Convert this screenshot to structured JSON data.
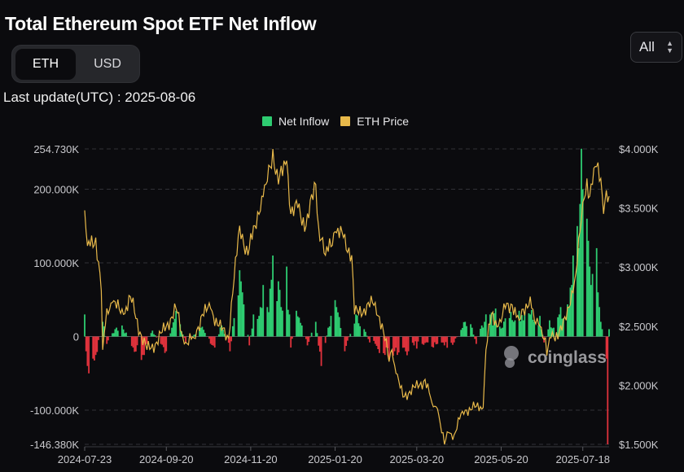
{
  "header": {
    "title": "Total Ethereum Spot ETF Net Inflow"
  },
  "unit_toggle": {
    "options": [
      "ETH",
      "USD"
    ],
    "selected": "ETH"
  },
  "range_select": {
    "value": "All"
  },
  "last_update": "Last update(UTC) : 2025-08-06",
  "watermark": "coinglass",
  "colors": {
    "inflow": "#2ecc71",
    "outflow": "#e0323c",
    "price": "#e8b94a",
    "background": "#0b0b0e"
  },
  "chart_data": {
    "type": "bar",
    "title": "Total Ethereum Spot ETF Net Inflow",
    "legend": {
      "placement": "top-center",
      "entries": [
        {
          "name": "Net Inflow",
          "color": "#2ecc71"
        },
        {
          "name": "ETH Price",
          "color": "#e8b94a"
        }
      ]
    },
    "grid": true,
    "x_start": "2024-07-23",
    "x_end": "2025-08-06",
    "x_tick_labels": [
      "2024-07-23",
      "2024-09-20",
      "2024-11-20",
      "2025-01-20",
      "2025-03-20",
      "2025-05-20",
      "2025-07-18"
    ],
    "left_axis": {
      "ticks": [
        -146380,
        -100000,
        0,
        100000,
        200000,
        254730
      ],
      "tick_labels": [
        "-146.380K",
        "-100.000K",
        "0",
        "100.000K",
        "200.000K",
        "254.730K"
      ],
      "ylim": [
        -146380,
        254730
      ]
    },
    "right_axis": {
      "ticks": [
        1500,
        2000,
        2500,
        3000,
        3500,
        4000
      ],
      "tick_labels": [
        "$1.500K",
        "$2.000K",
        "$2.500K",
        "$3.000K",
        "$3.500K",
        "$4.000K"
      ],
      "ylim": [
        1500,
        4000
      ]
    },
    "net_inflow_keyframes": [
      [
        "2024-07-23",
        30000
      ],
      [
        "2024-07-24",
        -20000
      ],
      [
        "2024-07-25",
        -40000
      ],
      [
        "2024-07-26",
        -50000
      ],
      [
        "2024-07-29",
        -30000
      ],
      [
        "2024-07-31",
        -25000
      ],
      [
        "2024-08-05",
        20000
      ],
      [
        "2024-08-08",
        -10000
      ],
      [
        "2024-08-14",
        10000
      ],
      [
        "2024-08-19",
        15000
      ],
      [
        "2024-08-27",
        -15000
      ],
      [
        "2024-09-03",
        -25000
      ],
      [
        "2024-09-10",
        8000
      ],
      [
        "2024-09-16",
        -10000
      ],
      [
        "2024-09-20",
        -20000
      ],
      [
        "2024-09-27",
        35000
      ],
      [
        "2024-10-04",
        -8000
      ],
      [
        "2024-10-15",
        12000
      ],
      [
        "2024-10-25",
        -15000
      ],
      [
        "2024-10-30",
        15000
      ],
      [
        "2024-11-05",
        -20000
      ],
      [
        "2024-11-08",
        25000
      ],
      [
        "2024-11-12",
        90000
      ],
      [
        "2024-11-14",
        60000
      ],
      [
        "2024-11-19",
        -12000
      ],
      [
        "2024-11-22",
        30000
      ],
      [
        "2024-11-27",
        40000
      ],
      [
        "2024-11-29",
        70000
      ],
      [
        "2024-12-02",
        40000
      ],
      [
        "2024-12-04",
        65000
      ],
      [
        "2024-12-06",
        110000
      ],
      [
        "2024-12-10",
        75000
      ],
      [
        "2024-12-12",
        40000
      ],
      [
        "2024-12-16",
        95000
      ],
      [
        "2024-12-18",
        30000
      ],
      [
        "2024-12-19",
        -15000
      ],
      [
        "2024-12-23",
        35000
      ],
      [
        "2024-12-27",
        15000
      ],
      [
        "2024-12-31",
        -12000
      ],
      [
        "2025-01-06",
        20000
      ],
      [
        "2025-01-10",
        -40000
      ],
      [
        "2025-01-15",
        12000
      ],
      [
        "2025-01-21",
        40000
      ],
      [
        "2025-01-27",
        -20000
      ],
      [
        "2025-02-04",
        30000
      ],
      [
        "2025-02-06",
        18000
      ],
      [
        "2025-02-10",
        10000
      ],
      [
        "2025-02-14",
        -8000
      ],
      [
        "2025-02-18",
        -10000
      ],
      [
        "2025-02-25",
        -25000
      ],
      [
        "2025-02-28",
        -30000
      ],
      [
        "2025-03-04",
        -20000
      ],
      [
        "2025-03-11",
        -15000
      ],
      [
        "2025-03-14",
        -20000
      ],
      [
        "2025-03-18",
        -12000
      ],
      [
        "2025-03-24",
        -10000
      ],
      [
        "2025-03-28",
        -8000
      ],
      [
        "2025-04-01",
        -15000
      ],
      [
        "2025-04-04",
        -10000
      ],
      [
        "2025-04-09",
        -12000
      ],
      [
        "2025-04-16",
        -8000
      ],
      [
        "2025-04-24",
        20000
      ],
      [
        "2025-04-29",
        12000
      ],
      [
        "2025-05-02",
        -10000
      ],
      [
        "2025-05-06",
        15000
      ],
      [
        "2025-05-08",
        20000
      ],
      [
        "2025-05-12",
        30000
      ],
      [
        "2025-05-14",
        15000
      ],
      [
        "2025-05-16",
        38000
      ],
      [
        "2025-05-21",
        12000
      ],
      [
        "2025-05-26",
        25000
      ],
      [
        "2025-05-29",
        20000
      ],
      [
        "2025-06-02",
        35000
      ],
      [
        "2025-06-05",
        22000
      ],
      [
        "2025-06-10",
        30000
      ],
      [
        "2025-06-13",
        20000
      ],
      [
        "2025-06-17",
        28000
      ],
      [
        "2025-06-20",
        -8000
      ],
      [
        "2025-06-24",
        22000
      ],
      [
        "2025-06-27",
        12000
      ],
      [
        "2025-07-01",
        30000
      ],
      [
        "2025-07-04",
        25000
      ],
      [
        "2025-07-08",
        40000
      ],
      [
        "2025-07-10",
        70000
      ],
      [
        "2025-07-11",
        110000
      ],
      [
        "2025-07-14",
        150000
      ],
      [
        "2025-07-15",
        120000
      ],
      [
        "2025-07-16",
        180000
      ],
      [
        "2025-07-17",
        255000
      ],
      [
        "2025-07-18",
        200000
      ],
      [
        "2025-07-21",
        160000
      ],
      [
        "2025-07-22",
        130000
      ],
      [
        "2025-07-23",
        95000
      ],
      [
        "2025-07-24",
        70000
      ],
      [
        "2025-07-25",
        85000
      ],
      [
        "2025-07-28",
        120000
      ],
      [
        "2025-07-29",
        60000
      ],
      [
        "2025-07-30",
        40000
      ],
      [
        "2025-07-31",
        20000
      ],
      [
        "2025-08-01",
        10000
      ],
      [
        "2025-08-04",
        -30000
      ],
      [
        "2025-08-05",
        -146380
      ],
      [
        "2025-08-06",
        10000
      ]
    ],
    "eth_price_keyframes": [
      [
        "2024-07-23",
        3480
      ],
      [
        "2024-07-25",
        3180
      ],
      [
        "2024-07-31",
        3250
      ],
      [
        "2024-08-04",
        2800
      ],
      [
        "2024-08-05",
        2300
      ],
      [
        "2024-08-08",
        2650
      ],
      [
        "2024-08-12",
        2700
      ],
      [
        "2024-08-20",
        2600
      ],
      [
        "2024-08-25",
        2750
      ],
      [
        "2024-09-01",
        2450
      ],
      [
        "2024-09-06",
        2300
      ],
      [
        "2024-09-12",
        2350
      ],
      [
        "2024-09-20",
        2500
      ],
      [
        "2024-09-27",
        2650
      ],
      [
        "2024-10-03",
        2350
      ],
      [
        "2024-10-10",
        2400
      ],
      [
        "2024-10-16",
        2600
      ],
      [
        "2024-10-22",
        2650
      ],
      [
        "2024-10-28",
        2500
      ],
      [
        "2024-11-04",
        2400
      ],
      [
        "2024-11-06",
        2700
      ],
      [
        "2024-11-10",
        3100
      ],
      [
        "2024-11-12",
        3350
      ],
      [
        "2024-11-18",
        3100
      ],
      [
        "2024-11-23",
        3350
      ],
      [
        "2024-11-28",
        3600
      ],
      [
        "2024-12-01",
        3700
      ],
      [
        "2024-12-04",
        3850
      ],
      [
        "2024-12-06",
        4000
      ],
      [
        "2024-12-10",
        3700
      ],
      [
        "2024-12-16",
        3900
      ],
      [
        "2024-12-19",
        3450
      ],
      [
        "2024-12-24",
        3500
      ],
      [
        "2024-12-30",
        3350
      ],
      [
        "2025-01-06",
        3700
      ],
      [
        "2025-01-08",
        3350
      ],
      [
        "2025-01-13",
        3100
      ],
      [
        "2025-01-20",
        3300
      ],
      [
        "2025-01-26",
        3250
      ],
      [
        "2025-02-01",
        3100
      ],
      [
        "2025-02-03",
        2600
      ],
      [
        "2025-02-10",
        2650
      ],
      [
        "2025-02-18",
        2700
      ],
      [
        "2025-02-24",
        2450
      ],
      [
        "2025-02-28",
        2200
      ],
      [
        "2025-03-02",
        2300
      ],
      [
        "2025-03-05",
        2100
      ],
      [
        "2025-03-10",
        1900
      ],
      [
        "2025-03-15",
        1950
      ],
      [
        "2025-03-22",
        2000
      ],
      [
        "2025-03-26",
        2050
      ],
      [
        "2025-03-31",
        1850
      ],
      [
        "2025-04-04",
        1800
      ],
      [
        "2025-04-09",
        1500
      ],
      [
        "2025-04-12",
        1600
      ],
      [
        "2025-04-16",
        1580
      ],
      [
        "2025-04-22",
        1780
      ],
      [
        "2025-04-25",
        1790
      ],
      [
        "2025-05-02",
        1820
      ],
      [
        "2025-05-07",
        1810
      ],
      [
        "2025-05-09",
        2300
      ],
      [
        "2025-05-13",
        2600
      ],
      [
        "2025-05-18",
        2500
      ],
      [
        "2025-05-23",
        2650
      ],
      [
        "2025-05-28",
        2680
      ],
      [
        "2025-06-02",
        2550
      ],
      [
        "2025-06-10",
        2750
      ],
      [
        "2025-06-13",
        2550
      ],
      [
        "2025-06-17",
        2500
      ],
      [
        "2025-06-21",
        2400
      ],
      [
        "2025-06-22",
        2250
      ],
      [
        "2025-06-25",
        2400
      ],
      [
        "2025-07-01",
        2450
      ],
      [
        "2025-07-06",
        2550
      ],
      [
        "2025-07-10",
        2800
      ],
      [
        "2025-07-13",
        2950
      ],
      [
        "2025-07-16",
        3300
      ],
      [
        "2025-07-18",
        3550
      ],
      [
        "2025-07-21",
        3750
      ],
      [
        "2025-07-23",
        3600
      ],
      [
        "2025-07-25",
        3700
      ],
      [
        "2025-07-28",
        3850
      ],
      [
        "2025-07-31",
        3750
      ],
      [
        "2025-08-02",
        3450
      ],
      [
        "2025-08-04",
        3650
      ],
      [
        "2025-08-05",
        3550
      ],
      [
        "2025-08-06",
        3600
      ]
    ]
  }
}
